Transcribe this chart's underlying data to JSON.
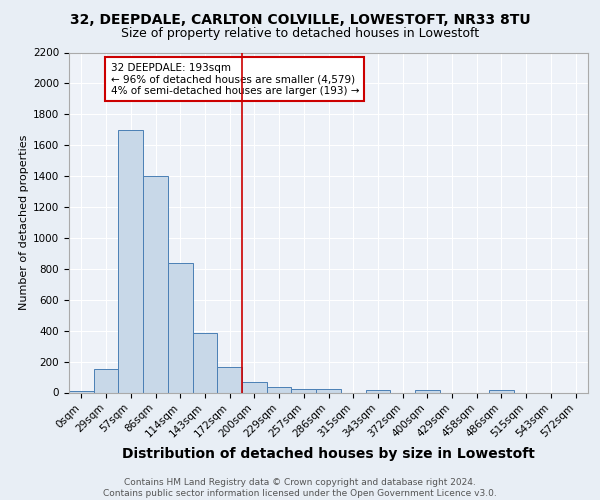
{
  "title1": "32, DEEPDALE, CARLTON COLVILLE, LOWESTOFT, NR33 8TU",
  "title2": "Size of property relative to detached houses in Lowestoft",
  "xlabel": "Distribution of detached houses by size in Lowestoft",
  "ylabel": "Number of detached properties",
  "bin_labels": [
    "0sqm",
    "29sqm",
    "57sqm",
    "86sqm",
    "114sqm",
    "143sqm",
    "172sqm",
    "200sqm",
    "229sqm",
    "257sqm",
    "286sqm",
    "315sqm",
    "343sqm",
    "372sqm",
    "400sqm",
    "429sqm",
    "458sqm",
    "486sqm",
    "515sqm",
    "543sqm",
    "572sqm"
  ],
  "bar_heights": [
    10,
    150,
    1700,
    1400,
    840,
    385,
    165,
    65,
    35,
    20,
    20,
    0,
    15,
    0,
    15,
    0,
    0,
    15,
    0,
    0,
    0
  ],
  "bar_color": "#c8d8e8",
  "bar_edge_color": "#4a7fb5",
  "vline_x": 7,
  "vline_color": "#cc0000",
  "annotation_text": "32 DEEPDALE: 193sqm\n← 96% of detached houses are smaller (4,579)\n4% of semi-detached houses are larger (193) →",
  "annotation_box_color": "white",
  "annotation_box_edge": "#cc0000",
  "footer_text": "Contains HM Land Registry data © Crown copyright and database right 2024.\nContains public sector information licensed under the Open Government Licence v3.0.",
  "ylim": [
    0,
    2200
  ],
  "yticks": [
    0,
    200,
    400,
    600,
    800,
    1000,
    1200,
    1400,
    1600,
    1800,
    2000,
    2200
  ],
  "background_color": "#e8eef5",
  "plot_bg_color": "#eef2f8",
  "grid_color": "#ffffff",
  "title1_fontsize": 10,
  "title2_fontsize": 9,
  "xlabel_fontsize": 10,
  "ylabel_fontsize": 8,
  "tick_fontsize": 7.5,
  "footer_fontsize": 6.5,
  "annot_fontsize": 7.5
}
